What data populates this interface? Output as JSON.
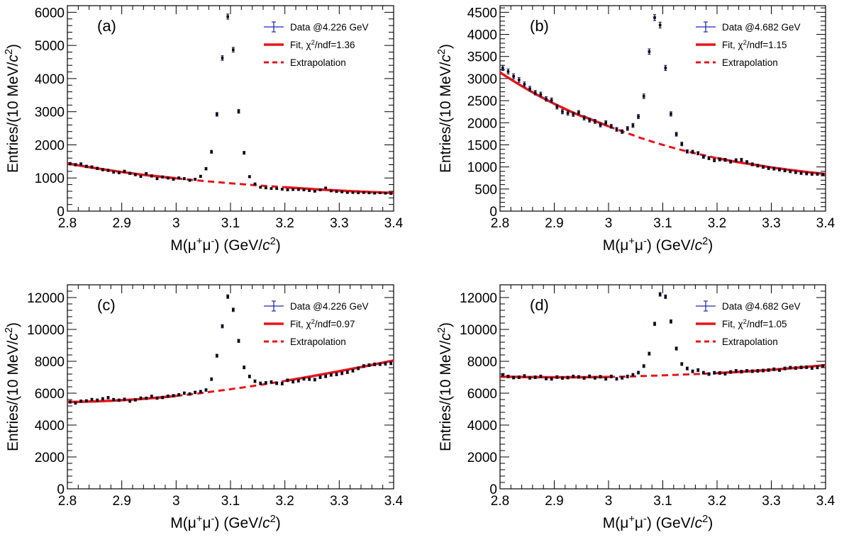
{
  "chart_data": [
    {
      "panel_label": "(a)",
      "type": "scatter",
      "xlabel": "M(μ⁺μ⁻) (GeV/c²)",
      "ylabel": "Entries/(10 MeV/c²)",
      "xlim": [
        2.8,
        3.4
      ],
      "ylim": [
        0,
        6200
      ],
      "xticks": [
        "2.8",
        "2.9",
        "3",
        "3.1",
        "3.2",
        "3.3",
        "3.4"
      ],
      "yticks": [
        "0",
        "1000",
        "2000",
        "3000",
        "4000",
        "5000",
        "6000"
      ],
      "legend": [
        "Data @4.226 GeV",
        "Fit, χ²/ndf=1.36",
        "Extrapolation"
      ],
      "legend_position": "top-right",
      "series": [
        {
          "name": "Data @4.226 GeV",
          "x": [
            2.805,
            2.815,
            2.825,
            2.835,
            2.845,
            2.855,
            2.865,
            2.875,
            2.885,
            2.895,
            2.905,
            2.915,
            2.925,
            2.935,
            2.945,
            2.955,
            2.965,
            2.975,
            2.985,
            2.995,
            3.005,
            3.015,
            3.025,
            3.035,
            3.045,
            3.055,
            3.065,
            3.075,
            3.085,
            3.095,
            3.105,
            3.115,
            3.125,
            3.135,
            3.145,
            3.155,
            3.165,
            3.175,
            3.185,
            3.195,
            3.205,
            3.215,
            3.225,
            3.235,
            3.245,
            3.255,
            3.265,
            3.275,
            3.285,
            3.295,
            3.305,
            3.315,
            3.325,
            3.335,
            3.345,
            3.355,
            3.365,
            3.375,
            3.385,
            3.395
          ],
          "values": [
            1430,
            1400,
            1420,
            1350,
            1330,
            1290,
            1250,
            1230,
            1180,
            1160,
            1200,
            1140,
            1100,
            1050,
            1130,
            1060,
            980,
            1030,
            1000,
            960,
            1000,
            980,
            930,
            960,
            1050,
            1280,
            1790,
            2920,
            4620,
            5870,
            4870,
            3010,
            1760,
            1040,
            820,
            720,
            700,
            680,
            680,
            660,
            640,
            650,
            650,
            640,
            620,
            600,
            640,
            700,
            610,
            590,
            580,
            560,
            560,
            550,
            560,
            550,
            540,
            550,
            540,
            530
          ],
          "errors": [
            38,
            37,
            38,
            37,
            36,
            36,
            35,
            35,
            34,
            34,
            35,
            34,
            33,
            32,
            34,
            33,
            31,
            32,
            32,
            31,
            32,
            31,
            31,
            31,
            32,
            36,
            42,
            54,
            68,
            77,
            70,
            55,
            42,
            32,
            29,
            27,
            26,
            26,
            26,
            26,
            25,
            25,
            25,
            25,
            25,
            24,
            25,
            26,
            25,
            24,
            24,
            24,
            24,
            23,
            24,
            23,
            23,
            23,
            23,
            23
          ]
        },
        {
          "name": "Fit, χ²/ndf=1.36",
          "x": [
            2.8,
            2.9,
            3.0,
            3.1,
            3.2,
            3.3,
            3.4
          ],
          "values": [
            1440,
            1180,
            990,
            840,
            720,
            620,
            550
          ]
        },
        {
          "name": "Extrapolation",
          "x": [
            3.0,
            3.2
          ],
          "values": [
            990,
            720
          ]
        }
      ]
    },
    {
      "panel_label": "(b)",
      "type": "scatter",
      "xlabel": "M(μ⁺μ⁻) (GeV/c²)",
      "ylabel": "Entries/(10 MeV/c²)",
      "xlim": [
        2.8,
        3.4
      ],
      "ylim": [
        0,
        4650
      ],
      "xticks": [
        "2.8",
        "2.9",
        "3",
        "3.1",
        "3.2",
        "3.3",
        "3.4"
      ],
      "yticks": [
        "0",
        "500",
        "1000",
        "1500",
        "2000",
        "2500",
        "3000",
        "3500",
        "4000",
        "4500"
      ],
      "legend": [
        "Data @4.682 GeV",
        "Fit, χ²/ndf=1.15",
        "Extrapolation"
      ],
      "legend_position": "top-right",
      "series": [
        {
          "name": "Data @4.682 GeV",
          "x": [
            2.805,
            2.815,
            2.825,
            2.835,
            2.845,
            2.855,
            2.865,
            2.875,
            2.885,
            2.895,
            2.905,
            2.915,
            2.925,
            2.935,
            2.945,
            2.955,
            2.965,
            2.975,
            2.985,
            2.995,
            3.005,
            3.015,
            3.025,
            3.035,
            3.045,
            3.055,
            3.065,
            3.075,
            3.085,
            3.095,
            3.105,
            3.115,
            3.125,
            3.135,
            3.145,
            3.155,
            3.165,
            3.175,
            3.185,
            3.195,
            3.205,
            3.215,
            3.225,
            3.235,
            3.245,
            3.255,
            3.265,
            3.275,
            3.285,
            3.295,
            3.305,
            3.315,
            3.325,
            3.335,
            3.345,
            3.355,
            3.365,
            3.375,
            3.385,
            3.395
          ],
          "values": [
            3240,
            3160,
            3050,
            2970,
            2870,
            2770,
            2680,
            2640,
            2540,
            2510,
            2360,
            2250,
            2220,
            2190,
            2230,
            2110,
            2060,
            2030,
            1950,
            2000,
            1920,
            1850,
            1800,
            1870,
            1940,
            2140,
            2600,
            3610,
            4380,
            4210,
            3240,
            2200,
            1740,
            1520,
            1350,
            1340,
            1310,
            1230,
            1200,
            1150,
            1170,
            1160,
            1120,
            1150,
            1160,
            1110,
            1060,
            1030,
            1000,
            970,
            960,
            940,
            920,
            900,
            880,
            860,
            850,
            840,
            840,
            830
          ],
          "errors": [
            57,
            56,
            55,
            54,
            53,
            52,
            51,
            51,
            50,
            50,
            48,
            47,
            47,
            46,
            47,
            46,
            45,
            45,
            44,
            44,
            44,
            43,
            42,
            43,
            44,
            46,
            51,
            60,
            66,
            65,
            57,
            47,
            42,
            39,
            37,
            37,
            36,
            35,
            35,
            34,
            34,
            34,
            33,
            34,
            34,
            33,
            33,
            32,
            32,
            31,
            31,
            31,
            30,
            30,
            30,
            29,
            29,
            29,
            29,
            29
          ]
        },
        {
          "name": "Fit, χ²/ndf=1.15",
          "x": [
            2.8,
            2.9,
            3.0,
            3.1,
            3.2,
            3.3,
            3.4
          ],
          "values": [
            3140,
            2430,
            1920,
            1500,
            1200,
            990,
            840
          ]
        },
        {
          "name": "Extrapolation",
          "x": [
            3.0,
            3.2
          ],
          "values": [
            1920,
            1200
          ]
        }
      ]
    },
    {
      "panel_label": "(c)",
      "type": "scatter",
      "xlabel": "M(μ⁺μ⁻) (GeV/c²)",
      "ylabel": "Entries/(10 MeV/c²)",
      "xlim": [
        2.8,
        3.4
      ],
      "ylim": [
        0,
        12800
      ],
      "xticks": [
        "2.8",
        "2.9",
        "3",
        "3.1",
        "3.2",
        "3.3",
        "3.4"
      ],
      "yticks": [
        "0",
        "2000",
        "4000",
        "6000",
        "8000",
        "10000",
        "12000"
      ],
      "legend": [
        "Data @4.226 GeV",
        "Fit, χ²/ndf=0.97",
        "Extrapolation"
      ],
      "legend_position": "top-right",
      "series": [
        {
          "name": "Data @4.226 GeV",
          "x": [
            2.805,
            2.815,
            2.825,
            2.835,
            2.845,
            2.855,
            2.865,
            2.875,
            2.885,
            2.895,
            2.905,
            2.915,
            2.925,
            2.935,
            2.945,
            2.955,
            2.965,
            2.975,
            2.985,
            2.995,
            3.005,
            3.015,
            3.025,
            3.035,
            3.045,
            3.055,
            3.065,
            3.075,
            3.085,
            3.095,
            3.105,
            3.115,
            3.125,
            3.135,
            3.145,
            3.155,
            3.165,
            3.175,
            3.185,
            3.195,
            3.205,
            3.215,
            3.225,
            3.235,
            3.245,
            3.255,
            3.265,
            3.275,
            3.285,
            3.295,
            3.305,
            3.315,
            3.325,
            3.335,
            3.345,
            3.355,
            3.365,
            3.375,
            3.385,
            3.395
          ],
          "values": [
            5450,
            5380,
            5500,
            5520,
            5600,
            5560,
            5650,
            5720,
            5600,
            5560,
            5620,
            5500,
            5580,
            5690,
            5680,
            5800,
            5690,
            5730,
            5810,
            5840,
            5900,
            6000,
            5950,
            6050,
            6100,
            6200,
            6880,
            8350,
            10200,
            12060,
            11230,
            9280,
            7620,
            7050,
            6750,
            6620,
            6650,
            6700,
            6620,
            6600,
            6810,
            6720,
            6780,
            6900,
            6880,
            6850,
            7000,
            7060,
            7150,
            7180,
            7250,
            7320,
            7410,
            7560,
            7700,
            7760,
            7810,
            7820,
            7850,
            7880
          ],
          "errors": [
            74,
            73,
            74,
            74,
            75,
            75,
            75,
            76,
            75,
            75,
            75,
            74,
            75,
            75,
            75,
            76,
            75,
            76,
            76,
            76,
            77,
            77,
            77,
            78,
            78,
            79,
            83,
            91,
            101,
            110,
            106,
            96,
            87,
            84,
            82,
            81,
            82,
            82,
            81,
            81,
            83,
            82,
            82,
            83,
            83,
            83,
            84,
            84,
            85,
            85,
            85,
            86,
            86,
            87,
            88,
            88,
            88,
            88,
            89,
            89
          ]
        },
        {
          "name": "Fit, χ²/ndf=0.97",
          "x": [
            2.8,
            2.9,
            3.0,
            3.1,
            3.2,
            3.3,
            3.4
          ],
          "values": [
            5450,
            5560,
            5830,
            6250,
            6770,
            7380,
            8050
          ]
        },
        {
          "name": "Extrapolation",
          "x": [
            3.0,
            3.2
          ],
          "values": [
            5830,
            6770
          ]
        }
      ]
    },
    {
      "panel_label": "(d)",
      "type": "scatter",
      "xlabel": "M(μ⁺μ⁻) (GeV/c²)",
      "ylabel": "Entries/(10 MeV/c²)",
      "xlim": [
        2.8,
        3.4
      ],
      "ylim": [
        0,
        12800
      ],
      "xticks": [
        "2.8",
        "2.9",
        "3",
        "3.1",
        "3.2",
        "3.3",
        "3.4"
      ],
      "yticks": [
        "0",
        "2000",
        "4000",
        "6000",
        "8000",
        "10000",
        "12000"
      ],
      "legend": [
        "Data @4.682 GeV",
        "Fit, χ²/ndf=1.05",
        "Extrapolation"
      ],
      "legend_position": "top-right",
      "series": [
        {
          "name": "Data @4.682 GeV",
          "x": [
            2.805,
            2.815,
            2.825,
            2.835,
            2.845,
            2.855,
            2.865,
            2.875,
            2.885,
            2.895,
            2.905,
            2.915,
            2.925,
            2.935,
            2.945,
            2.955,
            2.965,
            2.975,
            2.985,
            2.995,
            3.005,
            3.015,
            3.025,
            3.035,
            3.045,
            3.055,
            3.065,
            3.075,
            3.085,
            3.095,
            3.105,
            3.115,
            3.125,
            3.135,
            3.145,
            3.155,
            3.165,
            3.175,
            3.185,
            3.195,
            3.205,
            3.215,
            3.225,
            3.235,
            3.245,
            3.255,
            3.265,
            3.275,
            3.285,
            3.295,
            3.305,
            3.315,
            3.325,
            3.335,
            3.345,
            3.355,
            3.365,
            3.375,
            3.385,
            3.395
          ],
          "values": [
            7150,
            7050,
            6980,
            7000,
            7080,
            6960,
            7000,
            7050,
            6920,
            6900,
            7010,
            6950,
            6980,
            7050,
            7020,
            6950,
            7060,
            6960,
            7030,
            6900,
            7050,
            6900,
            6960,
            7050,
            7150,
            7290,
            7700,
            8480,
            10350,
            12200,
            12050,
            10500,
            8800,
            7830,
            7550,
            7370,
            7450,
            7280,
            7200,
            7280,
            7270,
            7220,
            7330,
            7400,
            7350,
            7400,
            7380,
            7400,
            7420,
            7450,
            7500,
            7450,
            7550,
            7600,
            7580,
            7620,
            7630,
            7580,
            7620,
            7700
          ],
          "errors": [
            85,
            84,
            84,
            84,
            84,
            83,
            84,
            84,
            83,
            83,
            84,
            83,
            84,
            84,
            84,
            83,
            84,
            83,
            84,
            83,
            84,
            83,
            83,
            84,
            85,
            85,
            88,
            92,
            102,
            110,
            110,
            102,
            94,
            88,
            87,
            86,
            86,
            85,
            85,
            85,
            85,
            85,
            86,
            86,
            86,
            86,
            86,
            86,
            86,
            86,
            87,
            86,
            87,
            87,
            87,
            87,
            87,
            87,
            87,
            88
          ]
        },
        {
          "name": "Fit, χ²/ndf=1.05",
          "x": [
            2.8,
            2.9,
            3.0,
            3.1,
            3.2,
            3.3,
            3.4
          ],
          "values": [
            7040,
            7000,
            7020,
            7120,
            7260,
            7470,
            7760
          ]
        },
        {
          "name": "Extrapolation",
          "x": [
            3.0,
            3.2
          ],
          "values": [
            7020,
            7260
          ]
        }
      ]
    }
  ],
  "colors": {
    "data": "#1a1a66",
    "data_marker": "#000000",
    "fit": "#e8141a",
    "legend_data": "#1f2bb0"
  }
}
